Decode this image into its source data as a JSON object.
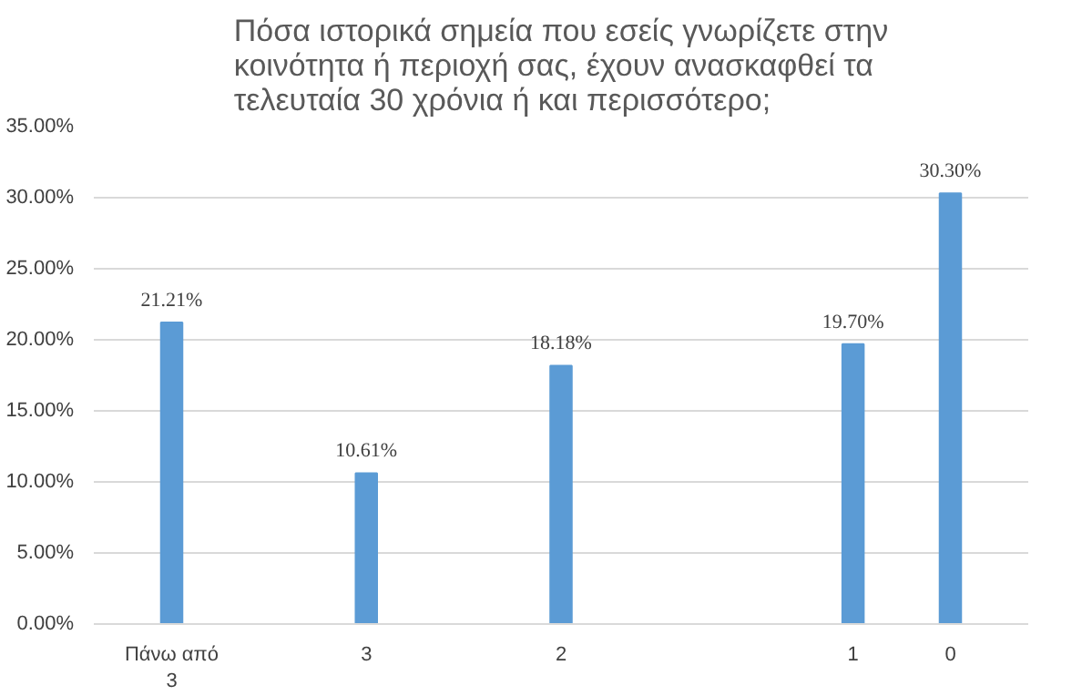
{
  "chart_data": {
    "type": "bar",
    "title": "Πόσα ιστορικά σημεία που εσείς γνωρίζετε στην\nκοινότητα ή περιοχή σας, έχουν ανασκαφθεί τα\nτελευταία 30 χρόνια ή και περισσότερο;",
    "categories": [
      "Πάνω από 3",
      null,
      "3",
      null,
      "2",
      null,
      null,
      "1",
      "0"
    ],
    "values": [
      21.21,
      null,
      10.61,
      null,
      18.18,
      null,
      null,
      19.7,
      30.3
    ],
    "value_labels": [
      "21.21%",
      null,
      "10.61%",
      null,
      "18.18%",
      null,
      null,
      "19.70%",
      "30.30%"
    ],
    "color": "#5b9bd5",
    "ylim": [
      0,
      35
    ],
    "yticks": [
      {
        "value": 0,
        "label": "0.00%"
      },
      {
        "value": 5,
        "label": "5.00%"
      },
      {
        "value": 10,
        "label": "10.00%"
      },
      {
        "value": 15,
        "label": "15.00%"
      },
      {
        "value": 20,
        "label": "20.00%"
      },
      {
        "value": 25,
        "label": "25.00%"
      },
      {
        "value": 30,
        "label": "30.00%"
      },
      {
        "value": 35,
        "label": "35.00%"
      }
    ],
    "grid": "y"
  }
}
